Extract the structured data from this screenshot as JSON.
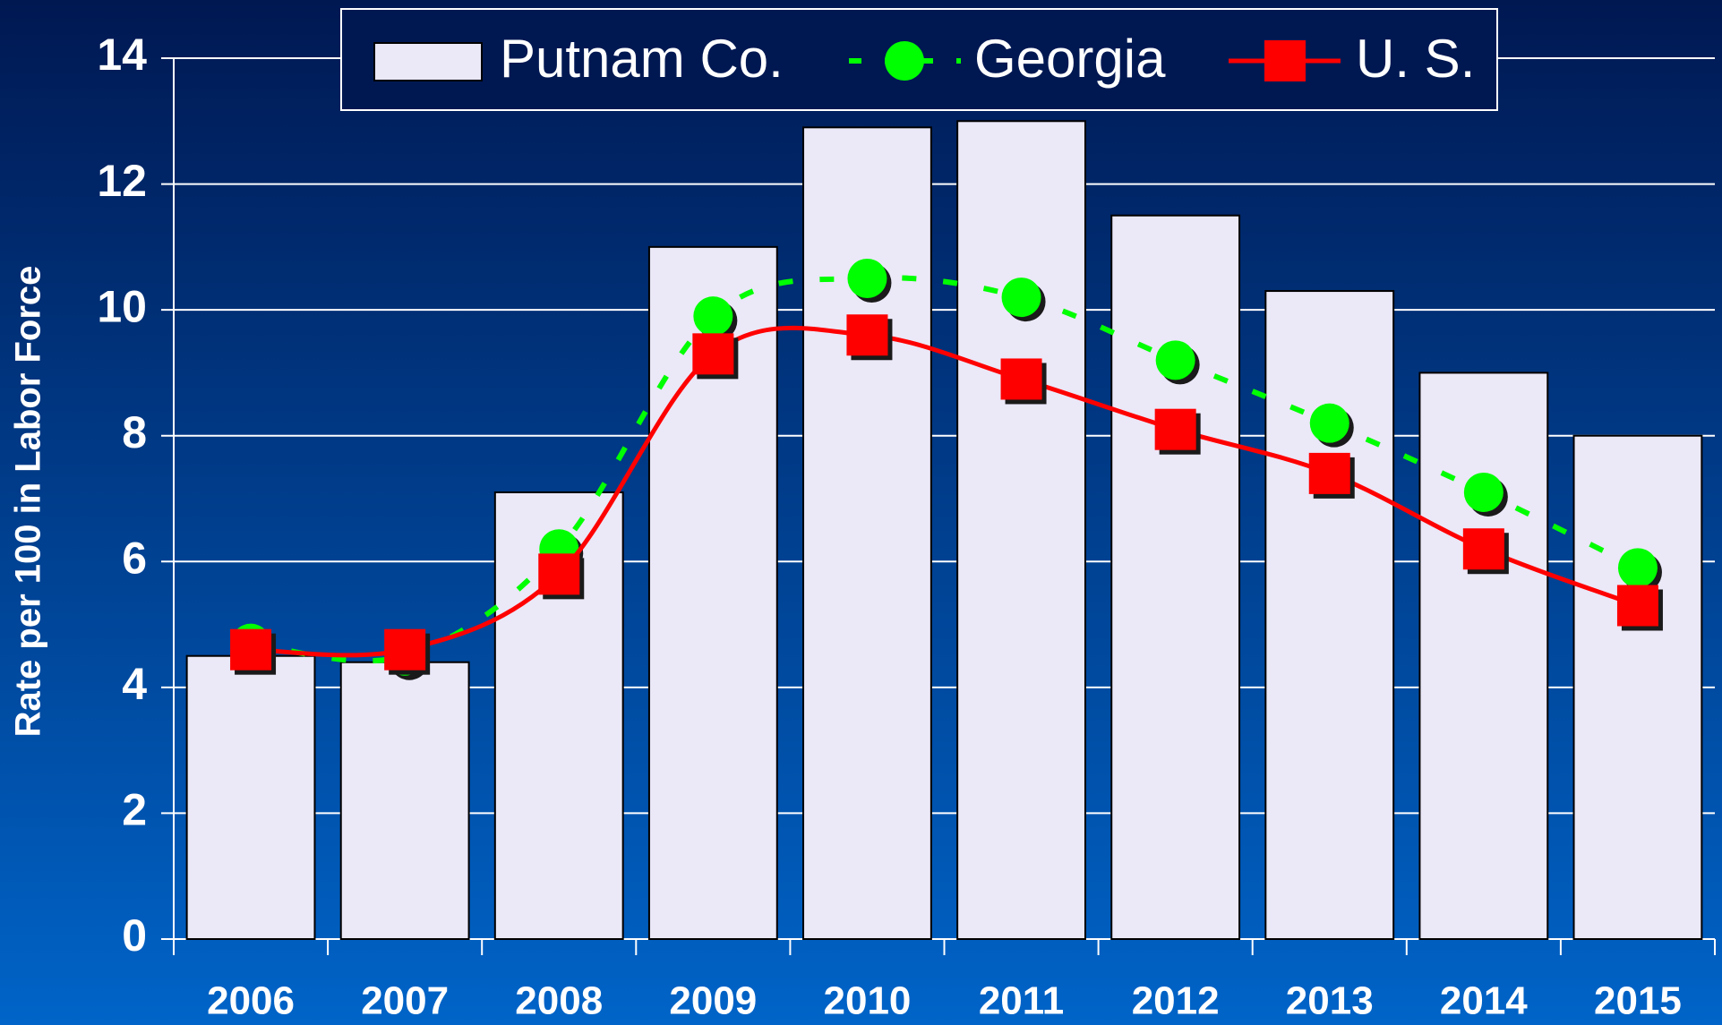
{
  "chart_data": {
    "type": "bar_line",
    "y_label": "Rate per 100 in Labor Force",
    "categories": [
      "2006",
      "2007",
      "2008",
      "2009",
      "2010",
      "2011",
      "2012",
      "2013",
      "2014",
      "2015"
    ],
    "series": [
      {
        "name": "Putnam Co.",
        "type": "bar",
        "color": "#ebe8f8",
        "values": [
          4.5,
          4.4,
          7.1,
          11.0,
          12.9,
          13.0,
          11.5,
          10.3,
          9.0,
          8.0
        ]
      },
      {
        "name": "Georgia",
        "type": "line",
        "color": "#00ff00",
        "marker": "circle",
        "dashed": true,
        "values": [
          4.7,
          4.5,
          6.2,
          9.9,
          10.5,
          10.2,
          9.2,
          8.2,
          7.1,
          5.9
        ]
      },
      {
        "name": "U. S.",
        "type": "line",
        "color": "#ff0000",
        "marker": "square",
        "dashed": false,
        "values": [
          4.6,
          4.6,
          5.8,
          9.3,
          9.6,
          8.9,
          8.1,
          7.4,
          6.2,
          5.3
        ]
      }
    ],
    "ylim": [
      0,
      14
    ],
    "yticks": [
      0,
      2,
      4,
      6,
      8,
      10,
      12,
      14
    ],
    "grid": true,
    "legend": "top"
  }
}
